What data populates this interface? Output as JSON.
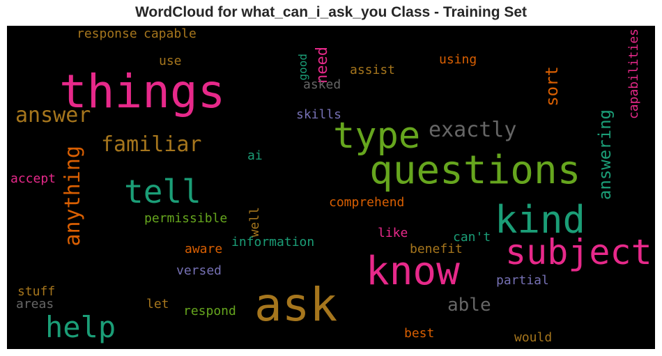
{
  "title": "WordCloud for what_can_i_ask_you Class - Training Set",
  "chart_data": {
    "type": "wordcloud",
    "background": "#000000",
    "words": [
      {
        "text": "things",
        "color": "#e7298a",
        "size": 66
      },
      {
        "text": "questions",
        "color": "#66a61e",
        "size": 56
      },
      {
        "text": "ask",
        "color": "#a6761d",
        "size": 66
      },
      {
        "text": "know",
        "color": "#e7298a",
        "size": 56
      },
      {
        "text": "kind",
        "color": "#1b9e77",
        "size": 54
      },
      {
        "text": "subject",
        "color": "#e7298a",
        "size": 50
      },
      {
        "text": "type",
        "color": "#66a61e",
        "size": 52
      },
      {
        "text": "tell",
        "color": "#1b9e77",
        "size": 46
      },
      {
        "text": "help",
        "color": "#1b9e77",
        "size": 42
      },
      {
        "text": "anything",
        "color": "#d95f02",
        "size": 30
      },
      {
        "text": "exactly",
        "color": "#666666",
        "size": 30
      },
      {
        "text": "familiar",
        "color": "#a6761d",
        "size": 30
      },
      {
        "text": "answer",
        "color": "#a6761d",
        "size": 30
      },
      {
        "text": "answering",
        "color": "#1b9e77",
        "size": 24
      },
      {
        "text": "able",
        "color": "#666666",
        "size": 26
      },
      {
        "text": "sort",
        "color": "#d95f02",
        "size": 24
      },
      {
        "text": "need",
        "color": "#e7298a",
        "size": 22
      },
      {
        "text": "capabilities",
        "color": "#e7298a",
        "size": 18
      },
      {
        "text": "good",
        "color": "#1b9e77",
        "size": 16
      },
      {
        "text": "response",
        "color": "#a6761d",
        "size": 18
      },
      {
        "text": "capable",
        "color": "#a6761d",
        "size": 18
      },
      {
        "text": "use",
        "color": "#a6761d",
        "size": 18
      },
      {
        "text": "assist",
        "color": "#a6761d",
        "size": 18
      },
      {
        "text": "using",
        "color": "#d95f02",
        "size": 18
      },
      {
        "text": "asked",
        "color": "#666666",
        "size": 18
      },
      {
        "text": "skills",
        "color": "#7570b3",
        "size": 18
      },
      {
        "text": "ai",
        "color": "#1b9e77",
        "size": 18
      },
      {
        "text": "accept",
        "color": "#e7298a",
        "size": 18
      },
      {
        "text": "comprehend",
        "color": "#d95f02",
        "size": 18
      },
      {
        "text": "permissible",
        "color": "#66a61e",
        "size": 18
      },
      {
        "text": "well",
        "color": "#a6761d",
        "size": 18
      },
      {
        "text": "like",
        "color": "#e7298a",
        "size": 18
      },
      {
        "text": "can't",
        "color": "#1b9e77",
        "size": 18
      },
      {
        "text": "information",
        "color": "#1b9e77",
        "size": 18
      },
      {
        "text": "aware",
        "color": "#d95f02",
        "size": 18
      },
      {
        "text": "benefit",
        "color": "#a6761d",
        "size": 18
      },
      {
        "text": "versed",
        "color": "#7570b3",
        "size": 18
      },
      {
        "text": "partial",
        "color": "#7570b3",
        "size": 18
      },
      {
        "text": "stuff",
        "color": "#a6761d",
        "size": 18
      },
      {
        "text": "areas",
        "color": "#666666",
        "size": 18
      },
      {
        "text": "let",
        "color": "#a6761d",
        "size": 18
      },
      {
        "text": "respond",
        "color": "#66a61e",
        "size": 18
      },
      {
        "text": "best",
        "color": "#d95f02",
        "size": 18
      },
      {
        "text": "would",
        "color": "#a6761d",
        "size": 18
      }
    ]
  }
}
